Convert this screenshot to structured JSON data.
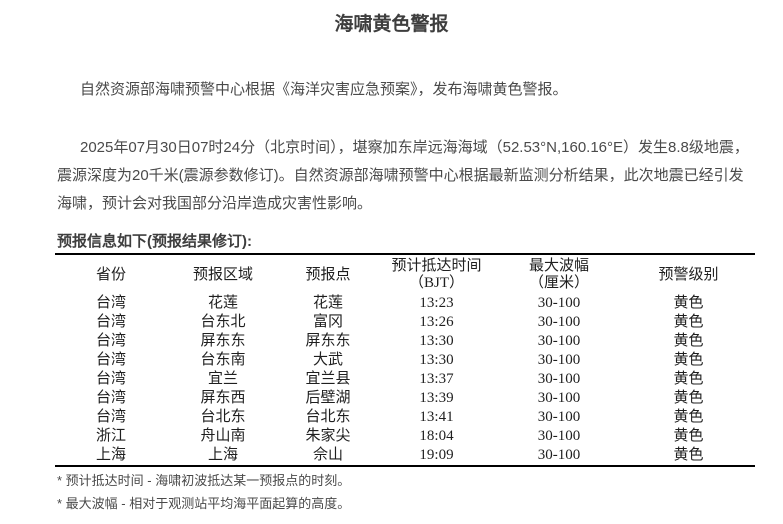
{
  "page": {
    "title": "海啸黄色警报",
    "paragraph_issuance": "自然资源部海啸预警中心根据《海洋灾害应急预案》，发布海啸黄色警报。",
    "paragraph_earthquake": "2025年07月30日07时24分（北京时间），堪察加东岸远海海域（52.53°N,160.16°E）发生8.8级地震，震源深度为20千米(震源参数修订)。自然资源部海啸预警中心根据最新监测分析结果，此次地震已经引发海啸，预计会对我国部分沿岸造成灾害性影响。",
    "forecast_heading": "预报信息如下(预报结果修订):",
    "footnotes": [
      "* 预计抵达时间 - 海啸初波抵达某一预报点的时刻。",
      "* 最大波幅 - 相对于观测站平均海平面起算的高度。"
    ]
  },
  "forecast_table": {
    "headers": [
      {
        "line1": "省份",
        "line2": ""
      },
      {
        "line1": "预报区域",
        "line2": ""
      },
      {
        "line1": "预报点",
        "line2": ""
      },
      {
        "line1": "预计抵达时间",
        "line2": "（BJT）"
      },
      {
        "line1": "最大波幅",
        "line2": "（厘米）"
      },
      {
        "line1": "预警级别",
        "line2": ""
      }
    ],
    "rows": [
      [
        "台湾",
        "花莲",
        "花莲",
        "13:23",
        "30-100",
        "黄色"
      ],
      [
        "台湾",
        "台东北",
        "富冈",
        "13:26",
        "30-100",
        "黄色"
      ],
      [
        "台湾",
        "屏东东",
        "屏东东",
        "13:30",
        "30-100",
        "黄色"
      ],
      [
        "台湾",
        "台东南",
        "大武",
        "13:30",
        "30-100",
        "黄色"
      ],
      [
        "台湾",
        "宜兰",
        "宜兰县",
        "13:37",
        "30-100",
        "黄色"
      ],
      [
        "台湾",
        "屏东西",
        "后壁湖",
        "13:39",
        "30-100",
        "黄色"
      ],
      [
        "台湾",
        "台北东",
        "台北东",
        "13:41",
        "30-100",
        "黄色"
      ],
      [
        "浙江",
        "舟山南",
        "朱家尖",
        "18:04",
        "30-100",
        "黄色"
      ],
      [
        "上海",
        "上海",
        "佘山",
        "19:09",
        "30-100",
        "黄色"
      ]
    ]
  },
  "colors": {
    "background": "#ffffff",
    "body_text": "#4a4a4a",
    "heading_text": "#3e3e3e",
    "table_text": "#1f1f1f",
    "rule": "#000000"
  }
}
